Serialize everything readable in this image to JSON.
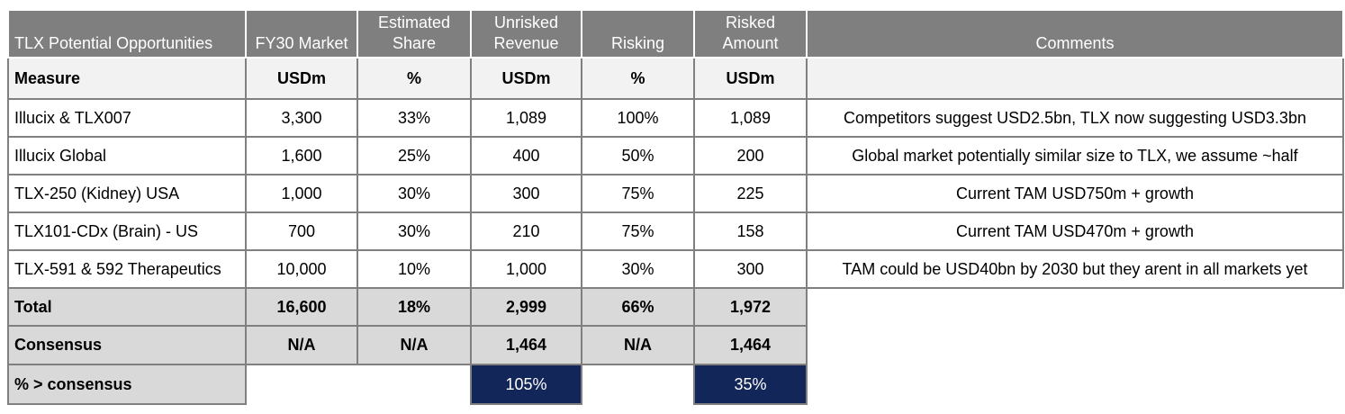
{
  "table": {
    "title": "TLX Potential Opportunities",
    "columns": [
      "TLX Potential Opportunities",
      "FY30 Market",
      "Estimated Share",
      "Unrisked Revenue",
      "Risking",
      "Risked Amount",
      "Comments"
    ],
    "measure": {
      "label": "Measure",
      "units": [
        "USDm",
        "%",
        "USDm",
        "%",
        "USDm"
      ]
    },
    "rows": [
      {
        "name": "Illucix & TLX007",
        "fy30_market": "3,300",
        "estimated_share": "33%",
        "unrisked_revenue": "1,089",
        "risking": "100%",
        "risked_amount": "1,089",
        "comment": "Competitors suggest USD2.5bn, TLX now suggesting USD3.3bn"
      },
      {
        "name": "Illucix Global",
        "fy30_market": "1,600",
        "estimated_share": "25%",
        "unrisked_revenue": "400",
        "risking": "50%",
        "risked_amount": "200",
        "comment": "Global market potentially similar size to TLX, we assume ~half"
      },
      {
        "name": "TLX-250 (Kidney) USA",
        "fy30_market": "1,000",
        "estimated_share": "30%",
        "unrisked_revenue": "300",
        "risking": "75%",
        "risked_amount": "225",
        "comment": "Current TAM USD750m + growth"
      },
      {
        "name": "TLX101-CDx (Brain) - US",
        "fy30_market": "700",
        "estimated_share": "30%",
        "unrisked_revenue": "210",
        "risking": "75%",
        "risked_amount": "158",
        "comment": "Current TAM USD470m + growth"
      },
      {
        "name": "TLX-591 & 592 Therapeutics",
        "fy30_market": "10,000",
        "estimated_share": "10%",
        "unrisked_revenue": "1,000",
        "risking": "30%",
        "risked_amount": "300",
        "comment": "TAM could be USD40bn by 2030 but they arent in all markets yet"
      }
    ],
    "total": {
      "label": "Total",
      "fy30_market": "16,600",
      "estimated_share": "18%",
      "unrisked_revenue": "2,999",
      "risking": "66%",
      "risked_amount": "1,972"
    },
    "consensus": {
      "label": "Consensus",
      "fy30_market": "N/A",
      "estimated_share": "N/A",
      "unrisked_revenue": "1,464",
      "risking": "N/A",
      "risked_amount": "1,464"
    },
    "vs_consensus": {
      "label": "% > consensus",
      "unrisked_revenue": "105%",
      "risked_amount": "35%"
    }
  },
  "colors": {
    "header_bg": "#7f7f7f",
    "header_text": "#ffffff",
    "measure_bg": "#f2f2f2",
    "summary_bg": "#d9d9d9",
    "highlight_bg": "#12265a",
    "highlight_text": "#ffffff",
    "border_color": "#808080"
  }
}
